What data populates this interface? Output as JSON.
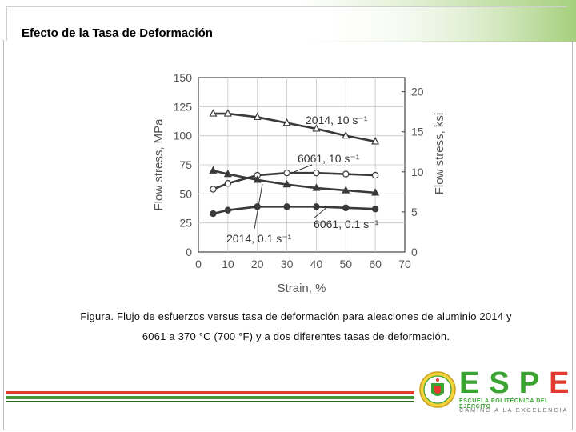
{
  "slide": {
    "title": "Efecto de la Tasa de Deformación",
    "caption_line1": "Figura. Flujo de esfuerzos versus tasa de deformación para aleaciones de aluminio 2014 y",
    "caption_line2": "6061 a 370 °C (700 °F) y a dos diferentes tasas de deformación."
  },
  "logo": {
    "letters": [
      "E",
      "S",
      "P",
      "E"
    ],
    "subtitle": "ESCUELA POLITÉCNICA DEL EJÉRCITO",
    "tagline": "CAMINO A LA EXCELENCIA",
    "green": "#3aa331",
    "red": "#e23a2e"
  },
  "chart_data": {
    "type": "line",
    "xlabel": "Strain, %",
    "ylabel": "Flow stress, MPa",
    "ylabel_right": "Flow stress, ksi",
    "xlim": [
      0,
      70
    ],
    "ylim": [
      0,
      150
    ],
    "ylim_right": [
      0,
      21.76
    ],
    "x_ticks": [
      0,
      10,
      20,
      30,
      40,
      50,
      60,
      70
    ],
    "y_ticks": [
      0,
      25,
      50,
      75,
      100,
      125,
      150
    ],
    "y_ticks_right": [
      0,
      5,
      10,
      15,
      20
    ],
    "grid": true,
    "line_color": "#3a3a3a",
    "series": [
      {
        "name": "2014, 10 s⁻¹",
        "marker": "open-triangle",
        "x": [
          5,
          10,
          20,
          30,
          40,
          50,
          60
        ],
        "y": [
          119,
          119,
          116,
          111,
          106,
          100,
          95
        ]
      },
      {
        "name": "6061, 10 s⁻¹",
        "marker": "open-circle",
        "x": [
          5,
          10,
          20,
          30,
          40,
          50,
          60
        ],
        "y": [
          54,
          59,
          66,
          68,
          68,
          67,
          66
        ]
      },
      {
        "name": "2014, 0.1 s⁻¹",
        "marker": "filled-triangle",
        "x": [
          5,
          10,
          20,
          30,
          40,
          50,
          60
        ],
        "y": [
          70,
          67,
          62,
          58,
          55,
          53,
          51
        ]
      },
      {
        "name": "6061, 0.1 s⁻¹",
        "marker": "filled-circle",
        "x": [
          5,
          10,
          20,
          30,
          40,
          50,
          60
        ],
        "y": [
          33,
          36,
          39,
          39,
          39,
          38,
          37
        ]
      }
    ]
  }
}
